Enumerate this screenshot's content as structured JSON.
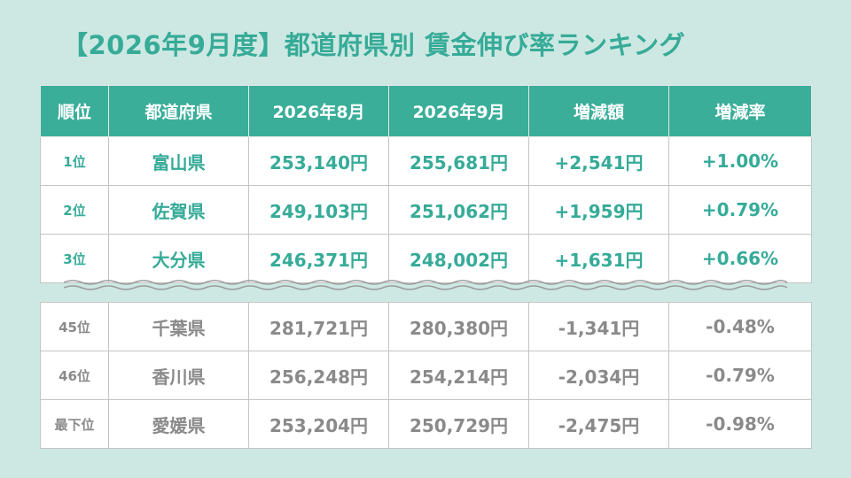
{
  "title": "【2026年9月度】都道府県別 賃金伸び率ランキング",
  "headers": [
    "順位",
    "都道府県",
    "2026年8月",
    "2026年9月",
    "増減額",
    "増減率"
  ],
  "top_rows": [
    {
      "rank": "1位",
      "pref": "富山県",
      "aug": "253,140円",
      "sep": "255,681円",
      "diff": "+2,541円",
      "rate": "+1.00%"
    },
    {
      "rank": "2位",
      "pref": "佐賀県",
      "aug": "249,103円",
      "sep": "251,062円",
      "diff": "+1,959円",
      "rate": "+0.79%"
    },
    {
      "rank": "3位",
      "pref": "大分県",
      "aug": "246,371円",
      "sep": "248,002円",
      "diff": "+1,631円",
      "rate": "+0.66%"
    }
  ],
  "bottom_rows": [
    {
      "rank": "45位",
      "pref": "千葉県",
      "aug": "281,721円",
      "sep": "280,380円",
      "diff": "-1,341円",
      "rate": "-0.48%"
    },
    {
      "rank": "46位",
      "pref": "香川県",
      "aug": "256,248円",
      "sep": "254,214円",
      "diff": "-2,034円",
      "rate": "-0.79%"
    },
    {
      "rank": "最下位",
      "pref": "愛媛県",
      "aug": "253,204円",
      "sep": "250,729円",
      "diff": "-2,475円",
      "rate": "-0.98%"
    }
  ],
  "colors": {
    "accent": "#3aae99",
    "background": "#cde8e2",
    "muted_text": "#8a8a8a"
  }
}
